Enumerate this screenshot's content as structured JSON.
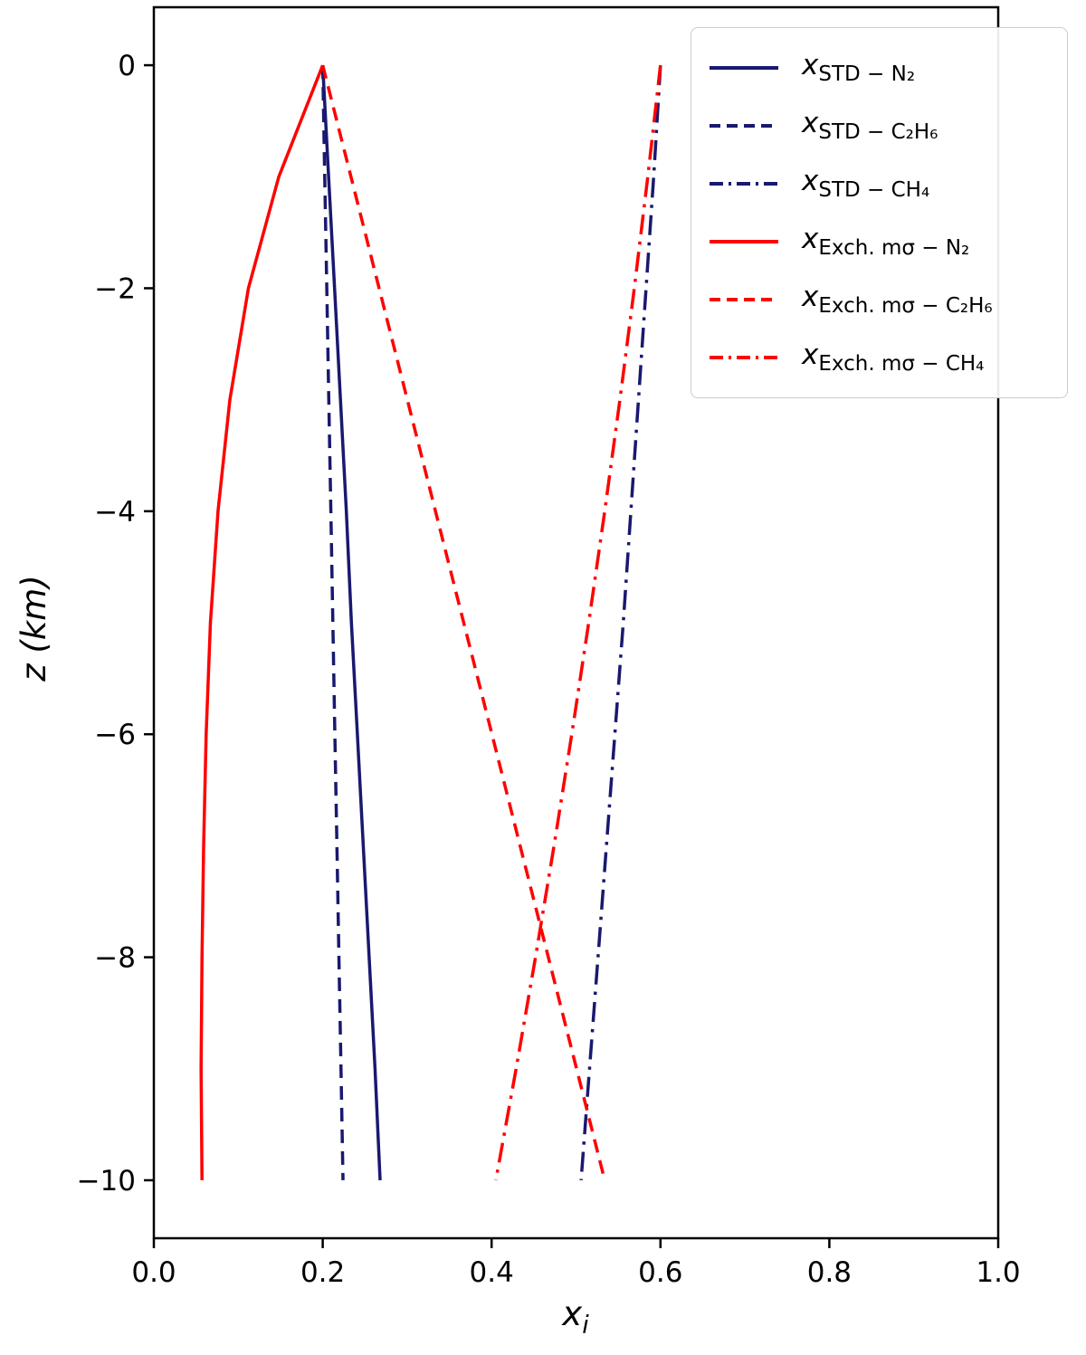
{
  "figure": {
    "background": "#ffffff"
  },
  "chart_data": {
    "type": "line",
    "title": "",
    "xlabel_main": "x",
    "xlabel_sub": "i",
    "ylabel": "z (km)",
    "xlim": [
      0,
      1
    ],
    "ylim_top": 0.52,
    "ylim_bottom": -10.52,
    "grid": false,
    "legend_position": "upper right",
    "x_ticks": [
      {
        "value": 0.0,
        "label": "0.0"
      },
      {
        "value": 0.2,
        "label": "0.2"
      },
      {
        "value": 0.4,
        "label": "0.4"
      },
      {
        "value": 0.6,
        "label": "0.6"
      },
      {
        "value": 0.8,
        "label": "0.8"
      },
      {
        "value": 1.0,
        "label": "1.0"
      }
    ],
    "y_ticks": [
      {
        "value": 0,
        "label": "0"
      },
      {
        "value": -2,
        "label": "−2"
      },
      {
        "value": -4,
        "label": "−4"
      },
      {
        "value": -6,
        "label": "−6"
      },
      {
        "value": -8,
        "label": "−8"
      },
      {
        "value": -10,
        "label": "−10"
      }
    ],
    "series": [
      {
        "name": "std-n2",
        "label_main": "x",
        "label_sub": "STD − N₂",
        "color": "#191970",
        "style": "solid",
        "points": [
          [
            0.2,
            0
          ],
          [
            0.207,
            -1
          ],
          [
            0.214,
            -2
          ],
          [
            0.221,
            -3
          ],
          [
            0.228,
            -4
          ],
          [
            0.234,
            -5
          ],
          [
            0.241,
            -6
          ],
          [
            0.248,
            -7
          ],
          [
            0.255,
            -8
          ],
          [
            0.262,
            -9
          ],
          [
            0.268,
            -10
          ]
        ]
      },
      {
        "name": "std-c2h6",
        "label_main": "x",
        "label_sub": "STD − C₂H₆",
        "color": "#191970",
        "style": "dashed",
        "points": [
          [
            0.2,
            0
          ],
          [
            0.2024,
            -1
          ],
          [
            0.2048,
            -2
          ],
          [
            0.2072,
            -3
          ],
          [
            0.2096,
            -4
          ],
          [
            0.212,
            -5
          ],
          [
            0.2144,
            -6
          ],
          [
            0.2168,
            -7
          ],
          [
            0.2192,
            -8
          ],
          [
            0.2216,
            -9
          ],
          [
            0.224,
            -10
          ]
        ]
      },
      {
        "name": "std-ch4",
        "label_main": "x",
        "label_sub": "STD − CH₄",
        "color": "#191970",
        "style": "dashdot",
        "points": [
          [
            0.6,
            0
          ],
          [
            0.592,
            -1
          ],
          [
            0.583,
            -2
          ],
          [
            0.574,
            -3
          ],
          [
            0.565,
            -4
          ],
          [
            0.556,
            -5
          ],
          [
            0.546,
            -6
          ],
          [
            0.536,
            -7
          ],
          [
            0.526,
            -8
          ],
          [
            0.516,
            -9
          ],
          [
            0.506,
            -10
          ]
        ]
      },
      {
        "name": "exch-ms-n2",
        "label_main": "x",
        "label_sub": "Exch. mσ − N₂",
        "color": "#ff0000",
        "style": "solid",
        "points": [
          [
            0.2,
            0
          ],
          [
            0.148,
            -1
          ],
          [
            0.112,
            -2
          ],
          [
            0.09,
            -3
          ],
          [
            0.076,
            -4
          ],
          [
            0.067,
            -5
          ],
          [
            0.062,
            -6
          ],
          [
            0.059,
            -7
          ],
          [
            0.057,
            -8
          ],
          [
            0.056,
            -9
          ],
          [
            0.057,
            -10
          ]
        ]
      },
      {
        "name": "exch-ms-c2h6",
        "label_main": "x",
        "label_sub": "Exch. mσ − C₂H₆",
        "color": "#ff0000",
        "style": "dashed",
        "points": [
          [
            0.2,
            0
          ],
          [
            0.2334,
            -1
          ],
          [
            0.2668,
            -2
          ],
          [
            0.3002,
            -3
          ],
          [
            0.3336,
            -4
          ],
          [
            0.367,
            -5
          ],
          [
            0.4004,
            -6
          ],
          [
            0.4338,
            -7
          ],
          [
            0.4672,
            -8
          ],
          [
            0.5006,
            -9
          ],
          [
            0.534,
            -10
          ]
        ]
      },
      {
        "name": "exch-ms-ch4",
        "label_main": "x",
        "label_sub": "Exch. mσ − CH₄",
        "color": "#ff0000",
        "style": "dashdot",
        "points": [
          [
            0.6,
            0
          ],
          [
            0.585,
            -1
          ],
          [
            0.569,
            -2
          ],
          [
            0.552,
            -3
          ],
          [
            0.534,
            -4
          ],
          [
            0.515,
            -5
          ],
          [
            0.495,
            -6
          ],
          [
            0.474,
            -7
          ],
          [
            0.452,
            -8
          ],
          [
            0.429,
            -9
          ],
          [
            0.405,
            -10
          ]
        ]
      }
    ]
  }
}
